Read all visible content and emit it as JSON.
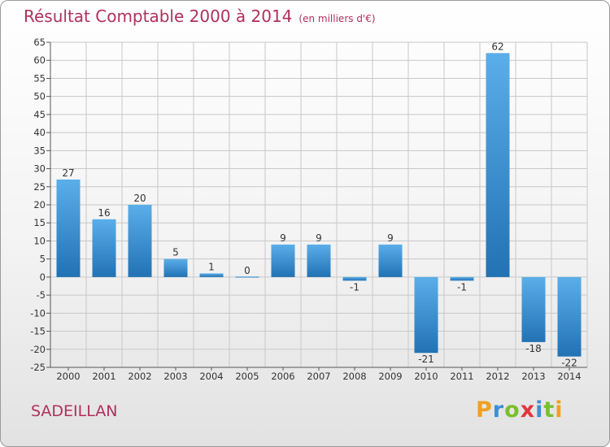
{
  "title": "Résultat Comptable 2000 à 2014",
  "subtitle": "(en milliers d'€)",
  "commune": "SADEILLAN",
  "logo": {
    "letters": [
      {
        "ch": "P",
        "color": "#f0a020"
      },
      {
        "ch": "r",
        "color": "#3c8fd8"
      },
      {
        "ch": "o",
        "color": "#7abf2e"
      },
      {
        "ch": "x",
        "color": "#e0363d"
      },
      {
        "ch": "i",
        "color": "#3c8fd8"
      },
      {
        "ch": "t",
        "color": "#7abf2e"
      },
      {
        "ch": "i",
        "color": "#f0a020"
      }
    ]
  },
  "colors": {
    "title": "#b0305d",
    "bar_light": "#5aaee9",
    "bar_dark": "#2272b4",
    "grid": "#c8c8c8"
  },
  "chart_data": {
    "type": "bar",
    "title": "Résultat Comptable 2000 à 2014",
    "ylabel": "(en milliers d'€)",
    "categories": [
      "2000",
      "2001",
      "2002",
      "2003",
      "2004",
      "2005",
      "2006",
      "2007",
      "2008",
      "2009",
      "2010",
      "2011",
      "2012",
      "2013",
      "2014"
    ],
    "values": [
      27,
      16,
      20,
      5,
      1,
      0,
      9,
      9,
      -1,
      9,
      -21,
      -1,
      62,
      -18,
      -22
    ],
    "data_labels": [
      "27",
      "16",
      "20",
      "5",
      "1",
      "0",
      "9",
      "9",
      "-1",
      "9",
      "-21",
      "-1",
      "62",
      "-18",
      "-22"
    ],
    "ylim": [
      -25,
      65
    ],
    "yticks": [
      65,
      60,
      55,
      50,
      45,
      40,
      35,
      30,
      25,
      20,
      15,
      10,
      5,
      0,
      -5,
      -10,
      -15,
      -20,
      -25
    ],
    "ytick_labels": [
      "65",
      "60",
      "55",
      "50",
      "45",
      "40",
      "35",
      "30",
      "25",
      "20",
      "15",
      "10",
      "5",
      "0",
      "-5",
      "-10",
      "-15",
      "-20",
      "-25"
    ],
    "grid": true
  }
}
